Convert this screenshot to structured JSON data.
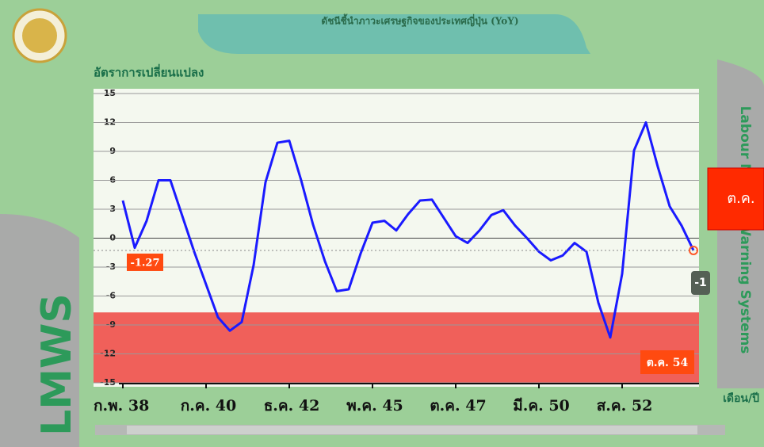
{
  "chart_data": {
    "type": "line",
    "title": "ดัชนีชี้นำภาวะเศรษฐกิจของประเทศญี่ปุ่น (YoY)",
    "y_label": "อัตราการเปลี่ยนแปลง",
    "x_label": "เดือน/ปี",
    "brand": "LMWS",
    "side_title": "Labour Market Warning Systems",
    "categories": [
      "ก.พ. 38",
      null,
      null,
      null,
      null,
      null,
      null,
      "ก.ค. 40",
      null,
      null,
      null,
      null,
      null,
      null,
      "ธ.ค. 42",
      null,
      null,
      null,
      null,
      null,
      null,
      "พ.ค. 45",
      null,
      null,
      null,
      null,
      null,
      null,
      "ต.ค. 47",
      null,
      null,
      null,
      null,
      null,
      null,
      "มี.ค. 50",
      null,
      null,
      null,
      null,
      null,
      null,
      "ส.ค. 52",
      null,
      null,
      null,
      null,
      null,
      "ต.ค. 54"
    ],
    "series": [
      {
        "name": "YoY",
        "color": "#1a1aff",
        "values": [
          3.9,
          -1.0,
          1.8,
          6.0,
          6.0,
          2.3,
          -1.4,
          -4.8,
          -8.2,
          -9.6,
          -8.7,
          -2.8,
          5.8,
          9.9,
          10.1,
          6.0,
          1.4,
          -2.4,
          -5.5,
          -5.3,
          -1.6,
          1.6,
          1.8,
          0.8,
          2.5,
          3.9,
          4.0,
          2.1,
          0.2,
          -0.5,
          0.8,
          2.4,
          2.9,
          1.3,
          0.0,
          -1.4,
          -2.3,
          -1.8,
          -0.5,
          -1.4,
          -6.7,
          -10.3,
          -3.7,
          9.1,
          12.0,
          7.4,
          3.3,
          1.3,
          -1.27
        ]
      }
    ],
    "ylim": [
      -15,
      15
    ],
    "yticks": [
      15,
      12,
      9,
      6,
      3,
      0,
      -3,
      -6,
      -9,
      -12,
      -15
    ],
    "grid": true,
    "warning_band": {
      "from": -7.7,
      "to": -15,
      "color": "#f0605a"
    },
    "annotations": [
      {
        "text": "-1.27",
        "value": -1.27
      },
      {
        "text": "-1",
        "value": -1
      },
      {
        "text": "ต.ค."
      }
    ]
  }
}
